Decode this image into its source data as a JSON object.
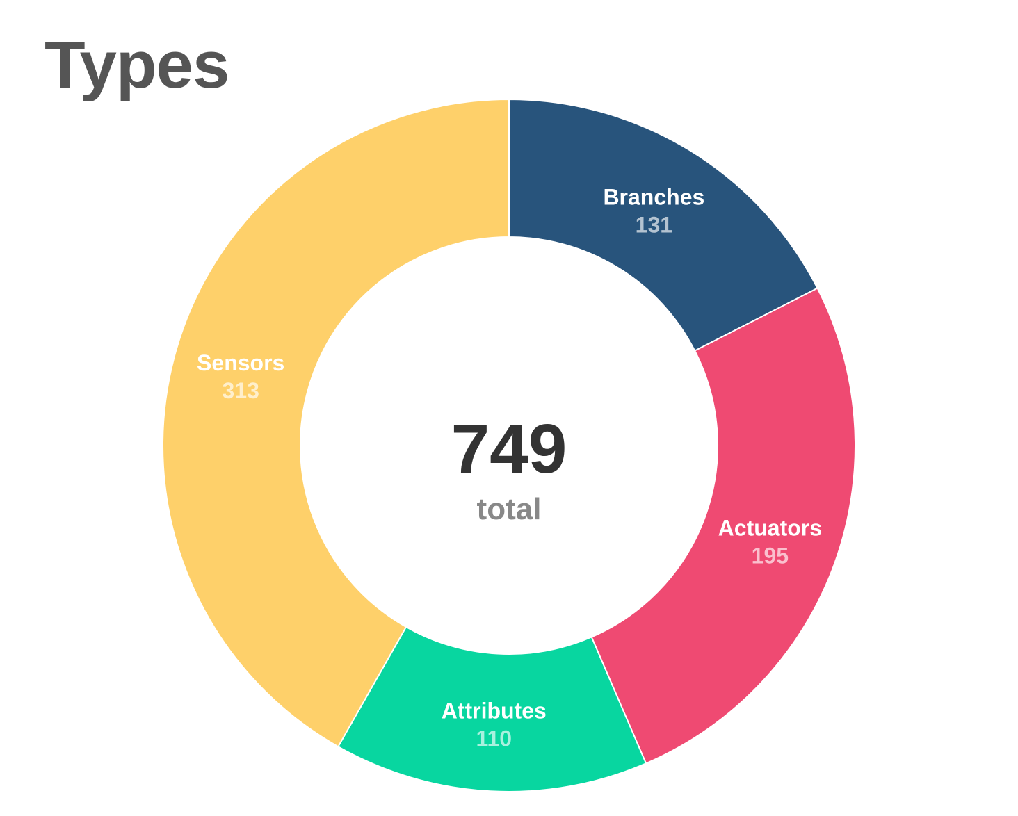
{
  "chart_data": {
    "type": "pie",
    "title": "Types",
    "categories": [
      "Branches",
      "Actuators",
      "Attributes",
      "Sensors"
    ],
    "values": [
      131,
      195,
      110,
      313
    ],
    "colors": [
      "#28547c",
      "#ef4a72",
      "#08d6a0",
      "#fed06a"
    ],
    "center": {
      "value": "749",
      "label": "total"
    },
    "legend": "none",
    "data_labels": "inside slices"
  }
}
